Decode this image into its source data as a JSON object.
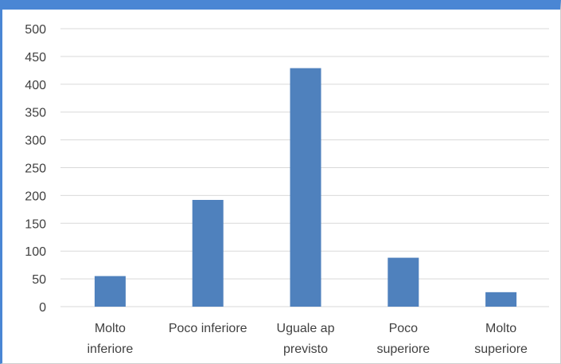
{
  "chart_data": {
    "type": "bar",
    "categories": [
      [
        "Molto",
        "inferiore"
      ],
      [
        "Poco inferiore"
      ],
      [
        "Uguale ap",
        "previsto"
      ],
      [
        "Poco",
        "superiore"
      ],
      [
        "Molto",
        "superiore"
      ]
    ],
    "values": [
      55,
      192,
      429,
      88,
      26
    ],
    "ylim": [
      0,
      500
    ],
    "yticks": [
      0,
      50,
      100,
      150,
      200,
      250,
      300,
      350,
      400,
      450,
      500
    ],
    "grid": true,
    "legend": "none",
    "bar_color": "#4f81bd",
    "grid_color": "#d9d9d9"
  }
}
